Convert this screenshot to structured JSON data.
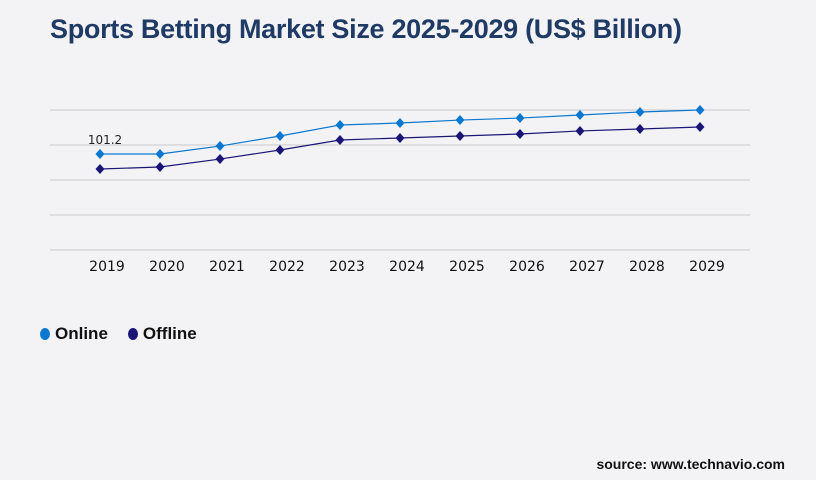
{
  "chart_data": {
    "type": "line",
    "title": "Sports Betting Market Size 2025-2029 (US$ Billion)",
    "categories": [
      "2019",
      "2020",
      "2021",
      "2022",
      "2023",
      "2024",
      "2025",
      "2026",
      "2027",
      "2028",
      "2029"
    ],
    "series": [
      {
        "name": "Online",
        "color": "#0a78d0",
        "values": [
          101.2,
          101.2,
          109.6,
          120.2,
          131.8,
          133.9,
          137.0,
          139.1,
          142.3,
          145.5,
          147.6
        ]
      },
      {
        "name": "Offline",
        "color": "#1a1676",
        "values": [
          85.4,
          87.5,
          95.9,
          105.4,
          116.0,
          118.1,
          120.2,
          122.3,
          125.5,
          127.6,
          129.7
        ]
      }
    ],
    "data_labels": [
      {
        "series": "Online",
        "category": "2019",
        "text": "101.2"
      }
    ],
    "ylim": [
      0,
      147.6
    ],
    "grid": true,
    "legend": "bottom-left"
  },
  "source": "source: www.technavio.com"
}
